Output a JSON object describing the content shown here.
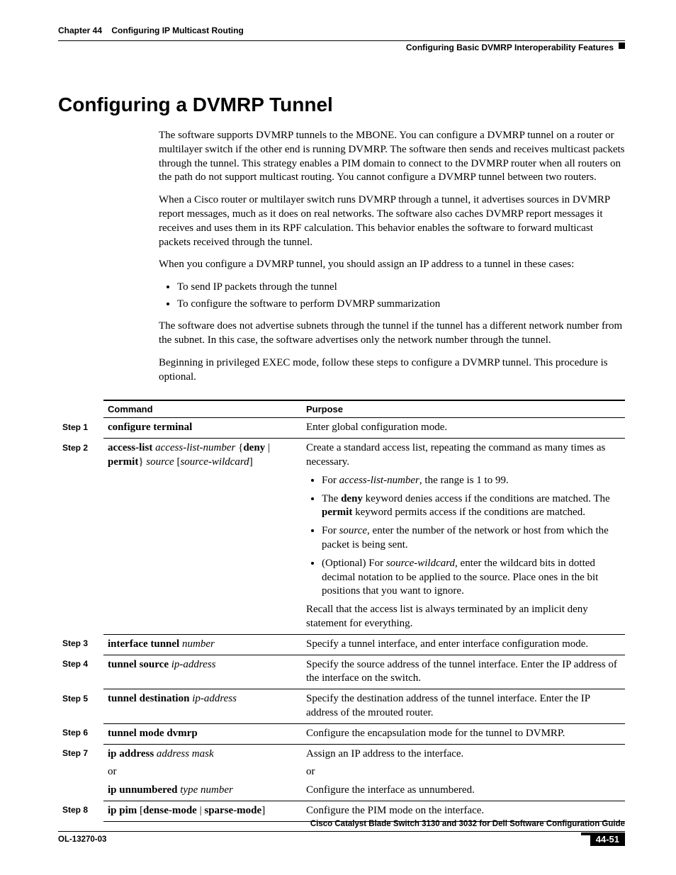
{
  "header": {
    "chapter_label": "Chapter 44",
    "chapter_title": "Configuring IP Multicast Routing",
    "section": "Configuring Basic DVMRP Interoperability Features"
  },
  "h1": "Configuring a DVMRP Tunnel",
  "paragraphs": {
    "p1": "The software supports DVMRP tunnels to the MBONE. You can configure a DVMRP tunnel on a router or multilayer switch if the other end is running DVMRP. The software then sends and receives multicast packets through the tunnel. This strategy enables a PIM domain to connect to the DVMRP router when all routers on the path do not support multicast routing. You cannot configure a DVMRP tunnel between two routers.",
    "p2": "When a Cisco router or multilayer switch runs DVMRP through a tunnel, it advertises sources in DVMRP report messages, much as it does on real networks. The software also caches DVMRP report messages it receives and uses them in its RPF calculation. This behavior enables the software to forward multicast packets received through the tunnel.",
    "p3": "When you configure a DVMRP tunnel, you should assign an IP address to a tunnel in these cases:",
    "bullets": {
      "b1": "To send IP packets through the tunnel",
      "b2": "To configure the software to perform DVMRP summarization"
    },
    "p4": "The software does not advertise subnets through the tunnel if the tunnel has a different network number from the subnet. In this case, the software advertises only the network number through the tunnel.",
    "p5": "Beginning in privileged EXEC mode, follow these steps to configure a DVMRP tunnel. This procedure is optional."
  },
  "table": {
    "headers": {
      "command": "Command",
      "purpose": "Purpose"
    },
    "steps": {
      "s1": "Step 1",
      "s2": "Step 2",
      "s3": "Step 3",
      "s4": "Step 4",
      "s5": "Step 5",
      "s6": "Step 6",
      "s7": "Step 7",
      "s8": "Step 8"
    },
    "cmd": {
      "c1_b": "configure terminal",
      "c2_b1": "access-list",
      "c2_i1": "access-list-number",
      "c2_t1": " {",
      "c2_b2": "deny",
      "c2_t2": " | ",
      "c2_b3": "permit",
      "c2_t3": "} ",
      "c2_i2": "source",
      "c2_t4": " [",
      "c2_i3": "source-wildcard",
      "c2_t5": "]",
      "c3_b": "interface tunnel",
      "c3_i": "number",
      "c4_b": "tunnel source",
      "c4_i": "ip-address",
      "c5_b": "tunnel destination",
      "c5_i": "ip-address",
      "c6_b": "tunnel mode dvmrp",
      "c7_b1": "ip address",
      "c7_i1": "address mask",
      "c7_or": "or",
      "c7_b2": "ip unnumbered",
      "c7_i2": "type number",
      "c8_b1": "ip pim",
      "c8_t1": " [",
      "c8_b2": "dense-mode",
      "c8_t2": " | ",
      "c8_b3": "sparse-mode",
      "c8_t3": "]"
    },
    "purpose": {
      "p1": "Enter global configuration mode.",
      "p2_intro": "Create a standard access list, repeating the command as many times as necessary.",
      "p2_b1a": "For ",
      "p2_b1i": "access-list-number",
      "p2_b1b": ", the range is 1 to 99.",
      "p2_b2a": "The ",
      "p2_b2b": "deny",
      "p2_b2c": " keyword denies access if the conditions are matched. The ",
      "p2_b2d": "permit",
      "p2_b2e": " keyword permits access if the conditions are matched.",
      "p2_b3a": "For ",
      "p2_b3i": "source",
      "p2_b3b": ", enter the number of the network or host from which the packet is being sent.",
      "p2_b4a": "(Optional) For ",
      "p2_b4i": "source-wildcard",
      "p2_b4b": ", enter the wildcard bits in dotted decimal notation to be applied to the source. Place ones in the bit positions that you want to ignore.",
      "p2_recall": "Recall that the access list is always terminated by an implicit deny statement for everything.",
      "p3": "Specify a tunnel interface, and enter interface configuration mode.",
      "p4": "Specify the source address of the tunnel interface. Enter the IP address of the interface on the switch.",
      "p5": "Specify the destination address of the tunnel interface. Enter the IP address of the mrouted router.",
      "p6": "Configure the encapsulation mode for the tunnel to DVMRP.",
      "p7a": "Assign an IP address to the interface.",
      "p7or": "or",
      "p7b": "Configure the interface as unnumbered.",
      "p8": "Configure the PIM mode on the interface."
    }
  },
  "footer": {
    "guide": "Cisco Catalyst Blade Switch 3130 and 3032 for Dell Software Configuration Guide",
    "ol": "OL-13270-03",
    "page": "44-51"
  }
}
